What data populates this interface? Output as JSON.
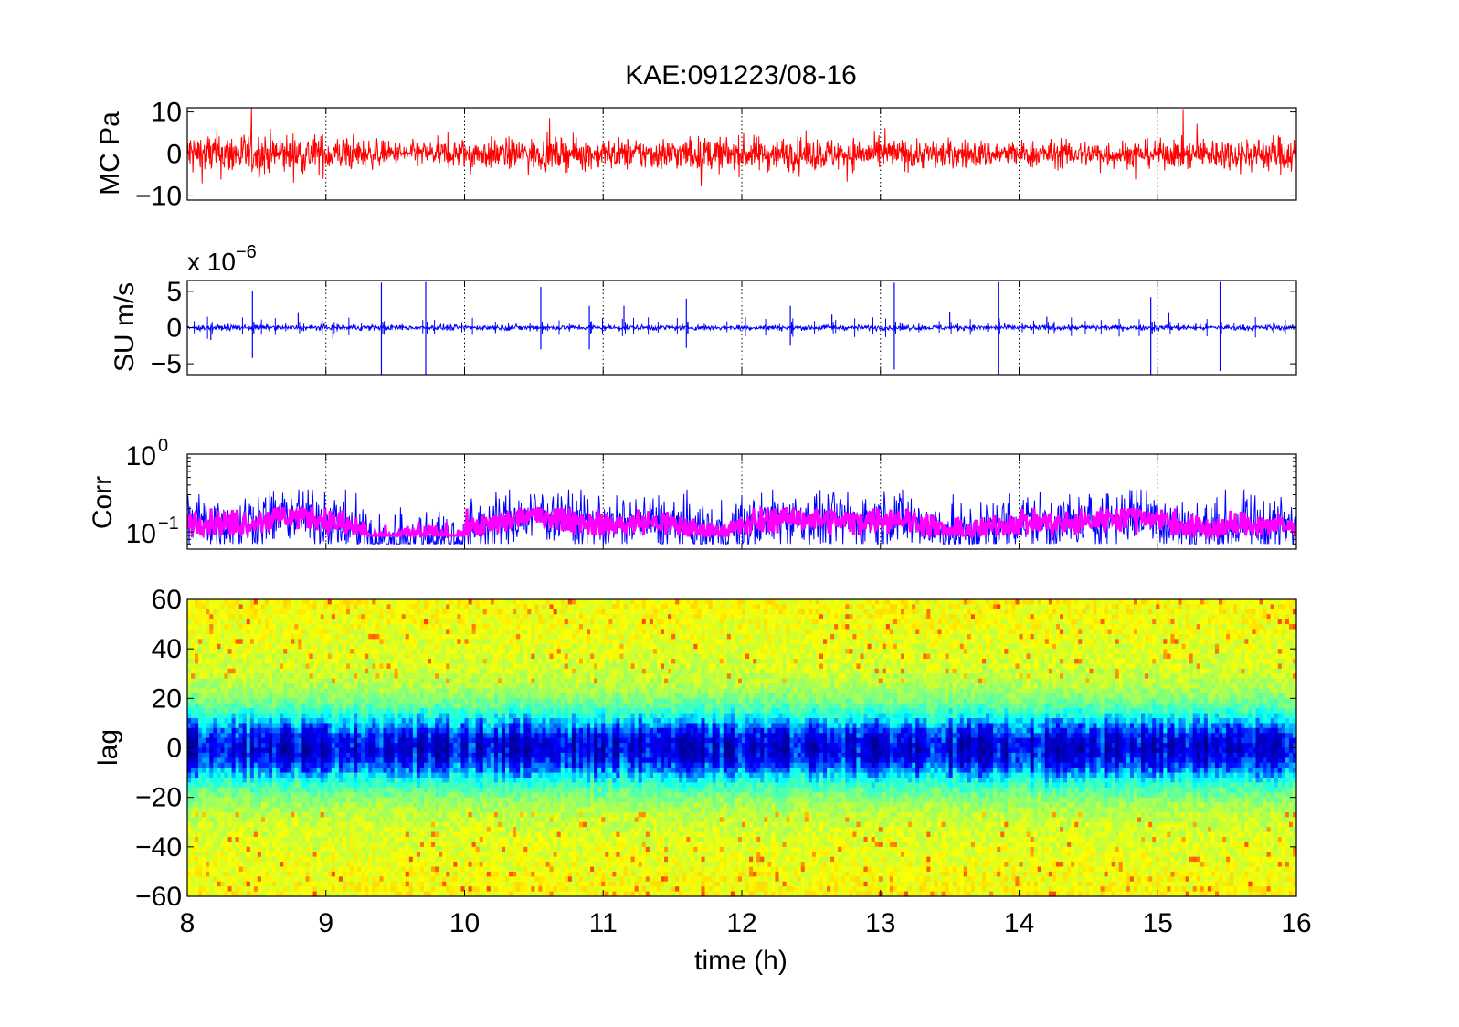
{
  "figure": {
    "title": "KAE:091223/08-16"
  },
  "chart_data": [
    {
      "type": "line",
      "panel": "top",
      "ylabel": "MC Pa",
      "ylim": [
        -11,
        11
      ],
      "xlim": [
        8,
        16
      ],
      "yticks": [
        "10",
        "0",
        "−10"
      ],
      "ytick_values": [
        10,
        0,
        -10
      ],
      "grid": "vertical dotted",
      "series": [
        {
          "color": "#ff0000",
          "description_of_values": "dense noise trace",
          "x_range": [
            8,
            16
          ],
          "envelope_per_hour": [
            [
              8,
              6
            ],
            [
              9,
              5
            ],
            [
              9.5,
              3
            ],
            [
              10,
              4
            ],
            [
              11,
              4
            ],
            [
              12,
              4.5
            ],
            [
              13,
              4
            ],
            [
              14,
              3.5
            ],
            [
              15,
              3.5
            ],
            [
              16,
              5
            ]
          ]
        }
      ]
    },
    {
      "type": "line",
      "panel": "second",
      "ylabel": "SU m/s",
      "multiplier": "x 10",
      "multiplier_exponent": "−6",
      "ylim": [
        -6.5,
        6.5
      ],
      "xlim": [
        8,
        16
      ],
      "yticks": [
        "5",
        "0",
        "−5"
      ],
      "ytick_values": [
        5,
        0,
        -5
      ],
      "grid": "vertical dotted",
      "series": [
        {
          "color": "#0000ff",
          "spikes": [
            [
              8.17,
              -1.7
            ],
            [
              8.47,
              5
            ],
            [
              8.47,
              -4.2
            ],
            [
              8.8,
              2
            ],
            [
              9.05,
              -1.5
            ],
            [
              9.4,
              6.2
            ],
            [
              9.4,
              -6.5
            ],
            [
              9.72,
              6.3
            ],
            [
              9.72,
              -6.5
            ],
            [
              10.55,
              5.6
            ],
            [
              10.55,
              -3
            ],
            [
              10.9,
              3
            ],
            [
              10.9,
              -3
            ],
            [
              11.15,
              3
            ],
            [
              11.6,
              4
            ],
            [
              11.6,
              -2.8
            ],
            [
              12.35,
              3
            ],
            [
              12.35,
              -2.5
            ],
            [
              12.65,
              1.8
            ],
            [
              13.1,
              6.2
            ],
            [
              13.1,
              -5.8
            ],
            [
              13.5,
              2.2
            ],
            [
              13.85,
              6.3
            ],
            [
              13.85,
              -6.5
            ],
            [
              14.2,
              1.5
            ],
            [
              14.95,
              4.2
            ],
            [
              14.95,
              -6.5
            ],
            [
              15.08,
              2
            ],
            [
              15.45,
              6.3
            ],
            [
              15.45,
              -6
            ]
          ]
        }
      ]
    },
    {
      "type": "line",
      "panel": "third",
      "ylabel": "Corr",
      "yscale": "log",
      "ylim": [
        0.06,
        1
      ],
      "xlim": [
        8,
        16
      ],
      "yticks": [
        "10",
        "10"
      ],
      "ytick_exponents": [
        "0",
        "−1"
      ],
      "ytick_values": [
        1,
        0.1
      ],
      "grid": "vertical dotted",
      "series": [
        {
          "color": "#0000ff",
          "band": [
            0.07,
            0.35
          ]
        },
        {
          "color": "#ff00ff",
          "band": [
            0.09,
            0.2
          ]
        }
      ]
    },
    {
      "type": "heatmap",
      "panel": "bottom",
      "ylabel": "lag",
      "xlabel": "time (h)",
      "ylim": [
        -60,
        60
      ],
      "xlim": [
        8,
        16
      ],
      "yticks": [
        "60",
        "40",
        "20",
        "0",
        "−20",
        "−40",
        "−60"
      ],
      "ytick_values": [
        60,
        40,
        20,
        0,
        -20,
        -40,
        -60
      ],
      "xticks": [
        "8",
        "9",
        "10",
        "11",
        "12",
        "13",
        "14",
        "15",
        "16"
      ],
      "xtick_values": [
        8,
        9,
        10,
        11,
        12,
        13,
        14,
        15,
        16
      ],
      "colormap": [
        "#00008f",
        "#0000ff",
        "#00ffff",
        "#7fff7f",
        "#ffff00",
        "#ff7f00",
        "#ff0000"
      ],
      "structure": "low (blue) band centred at lag 0, higher (yellow/red) at |lag| > 20"
    }
  ]
}
